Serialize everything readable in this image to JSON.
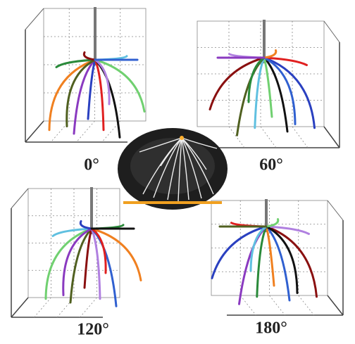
{
  "panels": [
    {
      "label": "0°"
    },
    {
      "label": "60°"
    },
    {
      "label": "120°"
    },
    {
      "label": "180°"
    }
  ]
}
